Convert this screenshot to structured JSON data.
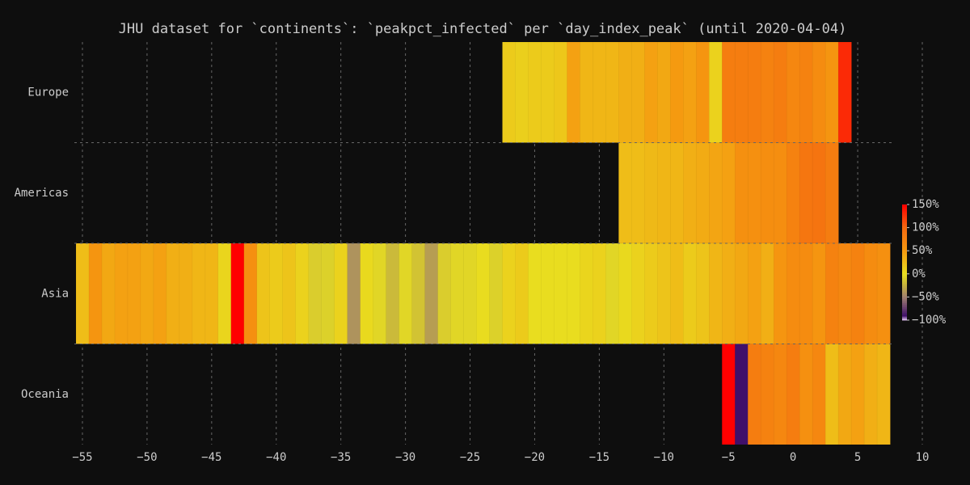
{
  "chart_data": {
    "type": "heatmap",
    "title": "JHU dataset for `continents`: `peakpct_infected` per `day_index_peak` (until 2020-04-04)",
    "xlim": [
      -56,
      10
    ],
    "xticks": [
      {
        "value": -55,
        "label": "−55"
      },
      {
        "value": -50,
        "label": "−50"
      },
      {
        "value": -45,
        "label": "−45"
      },
      {
        "value": -40,
        "label": "−40"
      },
      {
        "value": -35,
        "label": "−35"
      },
      {
        "value": -30,
        "label": "−30"
      },
      {
        "value": -25,
        "label": "−25"
      },
      {
        "value": -20,
        "label": "−20"
      },
      {
        "value": -15,
        "label": "−15"
      },
      {
        "value": -10,
        "label": "−10"
      },
      {
        "value": -5,
        "label": "−5"
      },
      0,
      5,
      10
    ],
    "grid": true,
    "series": [
      {
        "name": "Europe",
        "x": [
          -22,
          -21,
          -20,
          -19,
          -18,
          -17,
          -16,
          -15,
          -14,
          -13,
          -12,
          -11,
          -10,
          -9,
          -8,
          -7,
          -6,
          -5,
          -4,
          -3,
          -2,
          -1,
          0,
          1,
          2,
          3,
          4
        ],
        "values": [
          15,
          12,
          15,
          15,
          18,
          45,
          30,
          30,
          30,
          35,
          35,
          45,
          40,
          50,
          45,
          55,
          10,
          80,
          80,
          80,
          75,
          80,
          70,
          75,
          65,
          55,
          130
        ]
      },
      {
        "name": "Americas",
        "x": [
          -13,
          -12,
          -11,
          -10,
          -9,
          -8,
          -7,
          -6,
          -5,
          -4,
          -3,
          -2,
          -1,
          0,
          1,
          2,
          3
        ],
        "values": [
          25,
          25,
          28,
          30,
          30,
          35,
          38,
          42,
          45,
          60,
          60,
          62,
          62,
          75,
          88,
          90,
          80
        ]
      },
      {
        "name": "Asia",
        "x": [
          -55,
          -54,
          -53,
          -52,
          -51,
          -50,
          -49,
          -48,
          -47,
          -46,
          -45,
          -44,
          -43,
          -42,
          -41,
          -40,
          -39,
          -38,
          -37,
          -36,
          -35,
          -34,
          -33,
          -32,
          -31,
          -30,
          -29,
          -28,
          -27,
          -26,
          -25,
          -24,
          -23,
          -22,
          -21,
          -20,
          -19,
          -18,
          -17,
          -16,
          -15,
          -14,
          -13,
          -12,
          -11,
          -10,
          -9,
          -8,
          -7,
          -6,
          -5,
          -4,
          -3,
          -2,
          -1,
          0,
          1,
          2,
          3,
          4,
          5,
          6,
          7
        ],
        "values": [
          25,
          55,
          40,
          45,
          45,
          40,
          45,
          35,
          35,
          30,
          30,
          8,
          150,
          60,
          20,
          15,
          20,
          10,
          -10,
          -8,
          10,
          -40,
          5,
          -5,
          -20,
          -5,
          -15,
          -35,
          -10,
          -5,
          -5,
          3,
          -8,
          10,
          15,
          2,
          2,
          2,
          2,
          8,
          10,
          -5,
          5,
          10,
          15,
          20,
          25,
          15,
          20,
          30,
          35,
          40,
          45,
          35,
          55,
          65,
          65,
          55,
          75,
          70,
          75,
          65,
          60
        ]
      },
      {
        "name": "Oceania",
        "x": [
          -5,
          -4,
          -3,
          -2,
          -1,
          0,
          1,
          2,
          3,
          4,
          5,
          6,
          7
        ],
        "values": [
          150,
          -90,
          80,
          75,
          70,
          80,
          60,
          70,
          25,
          40,
          45,
          35,
          30
        ]
      }
    ],
    "colorscale": [
      [
        -100,
        "#f4d8ff"
      ],
      [
        -90,
        "#40106a"
      ],
      [
        -50,
        "#a08070"
      ],
      [
        -25,
        "#c4b040"
      ],
      [
        0,
        "#e8e020"
      ],
      [
        50,
        "#f59a10"
      ],
      [
        100,
        "#f56a10"
      ],
      [
        150,
        "#ff0000"
      ]
    ],
    "clim": [
      -100,
      150
    ],
    "cticks": [
      {
        "value": 150,
        "label": "150%"
      },
      {
        "value": 100,
        "label": "100%"
      },
      {
        "value": 50,
        "label": "50%"
      },
      {
        "value": 0,
        "label": "0%"
      },
      {
        "value": -50,
        "label": "−50%"
      },
      {
        "value": -100,
        "label": "−100%"
      }
    ]
  }
}
